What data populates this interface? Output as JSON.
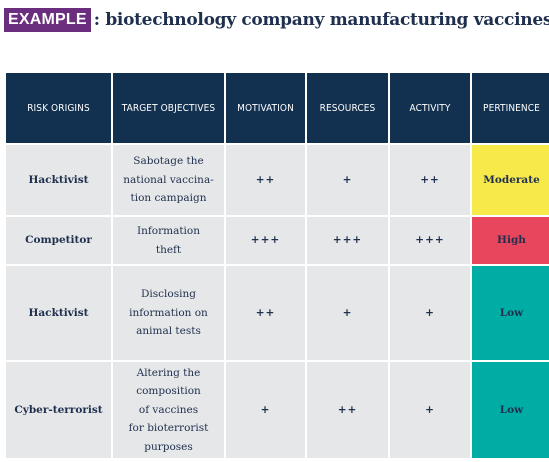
{
  "heading": {
    "badge": "EXAMPLE",
    "text": ": biotechnology company manufacturing vaccines."
  },
  "table": {
    "columns": [
      "RISK ORIGINS",
      "TARGET OBJECTIVES",
      "MOTIVATION",
      "RESOURCES",
      "ACTIVITY",
      "PERTINENCE"
    ],
    "rows": [
      {
        "origin": "Hacktivist",
        "objective_lines": [
          "Sabotage the",
          "national vaccina-",
          "tion campaign"
        ],
        "motivation": "++",
        "resources": "+",
        "activity": "++",
        "pertinence": "Moderate",
        "pertinence_color": "#f8e94b"
      },
      {
        "origin": "Competitor",
        "objective_lines": [
          "Information",
          "theft"
        ],
        "motivation": "+++",
        "resources": "+++",
        "activity": "+++",
        "pertinence": "High",
        "pertinence_color": "#e8465c"
      },
      {
        "origin": "Hacktivist",
        "objective_lines": [
          "Disclosing",
          "information on",
          "animal tests"
        ],
        "motivation": "++",
        "resources": "+",
        "activity": "+",
        "pertinence": "Low",
        "pertinence_color": "#00ada5"
      },
      {
        "origin": "Cyber-terrorist",
        "objective_lines": [
          "Altering the",
          "composition",
          "of vaccines",
          "for bioterrorist",
          "purposes"
        ],
        "motivation": "+",
        "resources": "++",
        "activity": "+",
        "pertinence": "Low",
        "pertinence_color": "#00ada5"
      }
    ]
  },
  "colors": {
    "badge_background": "#6b2d7e",
    "header_background": "#12304f",
    "cell_background": "#e6e7e8",
    "text": "#1f2f4e"
  }
}
